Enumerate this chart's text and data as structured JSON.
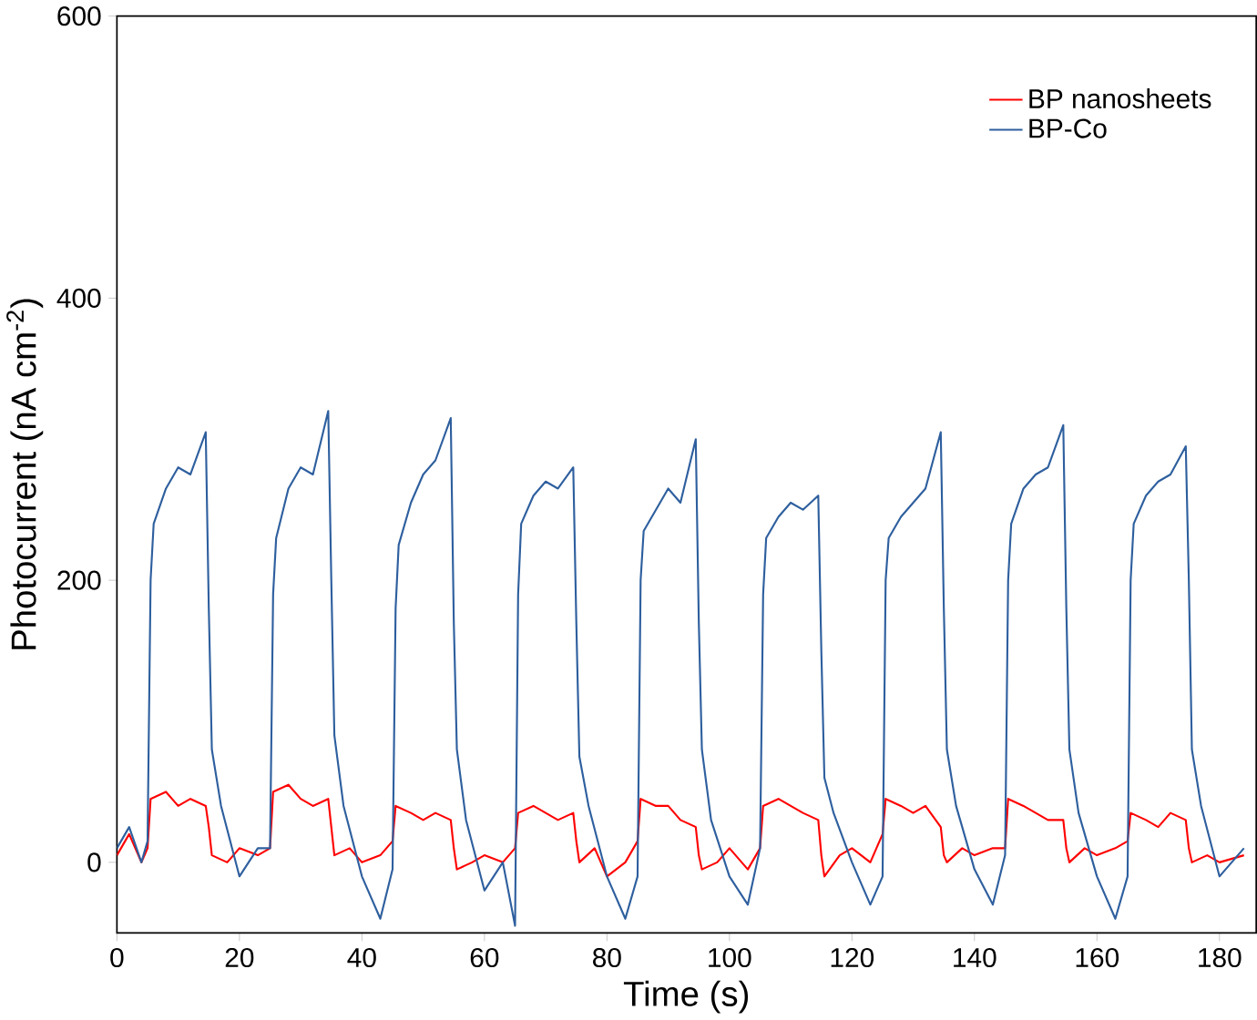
{
  "chart_data": {
    "type": "line",
    "xlabel": "Time (s)",
    "ylabel": "Photocurrent (nA cm$^{-2}$)",
    "xlim": [
      0,
      186
    ],
    "ylim": [
      -50,
      600
    ],
    "xticks": [
      0,
      20,
      40,
      60,
      80,
      100,
      120,
      140,
      160,
      180
    ],
    "yticks": [
      0,
      200,
      400,
      600
    ],
    "legend": "top right",
    "grid": false,
    "series": [
      {
        "name": "BP nanosheets",
        "color": "#ff0000",
        "x": [
          0,
          2,
          4,
          5,
          5.5,
          8,
          10,
          12,
          14.5,
          15,
          15.5,
          18,
          20,
          23,
          25,
          25.5,
          28,
          30,
          32,
          34.5,
          35,
          35.5,
          38,
          40,
          43,
          45,
          45.5,
          48,
          50,
          52,
          54.5,
          55,
          55.5,
          58,
          60,
          63,
          65,
          65.5,
          68,
          70,
          72,
          74.5,
          75,
          75.5,
          78,
          80,
          83,
          85,
          85.5,
          88,
          90,
          92,
          94.5,
          95,
          95.5,
          98,
          100,
          103,
          105,
          105.5,
          108,
          110,
          112,
          114.5,
          115,
          115.5,
          118,
          120,
          123,
          125,
          125.5,
          128,
          130,
          132,
          134.5,
          135,
          135.5,
          138,
          140,
          143,
          145,
          145.5,
          148,
          150,
          152,
          154.5,
          155,
          155.5,
          158,
          160,
          163,
          165,
          165.5,
          168,
          170,
          172,
          174.5,
          175,
          175.5,
          178,
          180,
          184
        ],
        "values": [
          5,
          20,
          0,
          10,
          45,
          50,
          40,
          45,
          40,
          25,
          5,
          0,
          10,
          5,
          10,
          50,
          55,
          45,
          40,
          45,
          25,
          5,
          10,
          0,
          5,
          15,
          40,
          35,
          30,
          35,
          30,
          10,
          -5,
          0,
          5,
          0,
          10,
          35,
          40,
          35,
          30,
          35,
          15,
          0,
          10,
          -10,
          0,
          15,
          45,
          40,
          40,
          30,
          25,
          5,
          -5,
          0,
          10,
          -5,
          10,
          40,
          45,
          40,
          35,
          30,
          5,
          -10,
          5,
          10,
          0,
          20,
          45,
          40,
          35,
          40,
          25,
          5,
          0,
          10,
          5,
          10,
          10,
          45,
          40,
          35,
          30,
          30,
          10,
          0,
          10,
          5,
          10,
          15,
          35,
          30,
          25,
          35,
          30,
          10,
          0,
          5,
          0,
          5
        ]
      },
      {
        "name": "BP-Co",
        "color": "#2e5f9e",
        "x": [
          0,
          2,
          4,
          5,
          5.5,
          6,
          8,
          10,
          12,
          14.5,
          15,
          15.5,
          17,
          20,
          23,
          25,
          25.5,
          26,
          28,
          30,
          32,
          34.5,
          35,
          35.5,
          37,
          40,
          43,
          45,
          45.5,
          46,
          48,
          50,
          52,
          54.5,
          55,
          55.5,
          57,
          60,
          63,
          65,
          65.5,
          66,
          68,
          70,
          72,
          74.5,
          75,
          75.5,
          77,
          80,
          83,
          85,
          85.5,
          86,
          88,
          90,
          92,
          94.5,
          95,
          95.5,
          97,
          100,
          103,
          105,
          105.5,
          106,
          108,
          110,
          112,
          114.5,
          115,
          115.5,
          117,
          120,
          123,
          125,
          125.5,
          126,
          128,
          130,
          132,
          134.5,
          135,
          135.5,
          137,
          140,
          143,
          145,
          145.5,
          146,
          148,
          150,
          152,
          154.5,
          155,
          155.5,
          157,
          160,
          163,
          165,
          165.5,
          166,
          168,
          170,
          172,
          174.5,
          175,
          175.5,
          177,
          180,
          184
        ],
        "values": [
          10,
          25,
          0,
          15,
          200,
          240,
          265,
          280,
          275,
          305,
          180,
          80,
          40,
          -10,
          10,
          10,
          190,
          230,
          265,
          280,
          275,
          320,
          200,
          90,
          40,
          -10,
          -40,
          -5,
          180,
          225,
          255,
          275,
          285,
          315,
          170,
          80,
          30,
          -20,
          0,
          -45,
          190,
          240,
          260,
          270,
          265,
          280,
          170,
          75,
          40,
          -10,
          -40,
          -10,
          200,
          235,
          250,
          265,
          255,
          300,
          170,
          80,
          30,
          -10,
          -30,
          10,
          190,
          230,
          245,
          255,
          250,
          260,
          150,
          60,
          35,
          0,
          -30,
          -10,
          200,
          230,
          245,
          255,
          265,
          305,
          180,
          80,
          40,
          -5,
          -30,
          5,
          200,
          240,
          265,
          275,
          280,
          310,
          180,
          80,
          35,
          -10,
          -40,
          -10,
          200,
          240,
          260,
          270,
          275,
          295,
          200,
          80,
          40,
          -10,
          10
        ]
      }
    ]
  }
}
